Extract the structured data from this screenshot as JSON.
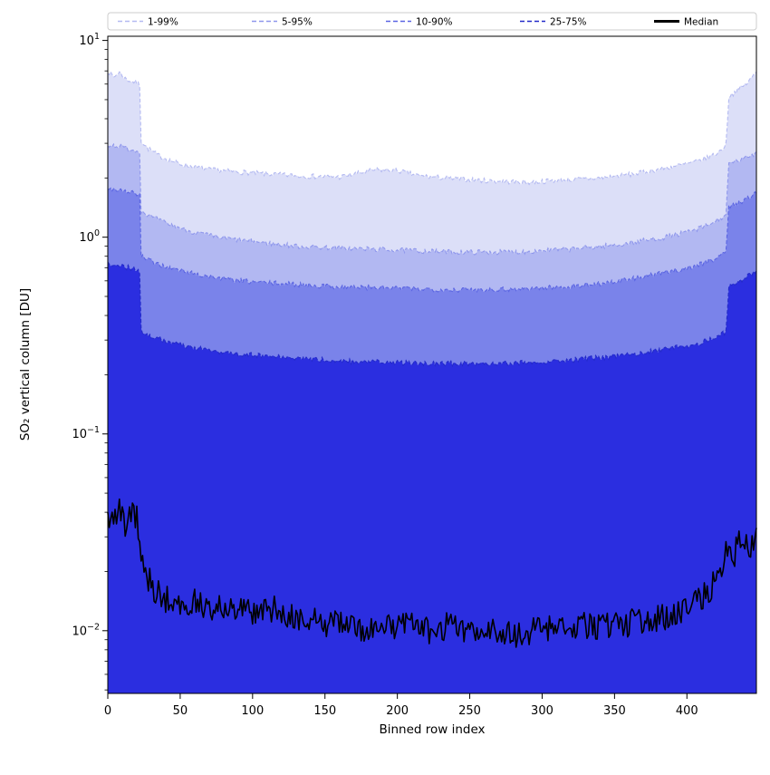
{
  "chart_data": {
    "type": "area",
    "title": "",
    "xlabel": "Binned row index",
    "ylabel": "SO₂ vertical column [DU]",
    "yscale": "log",
    "grid": false,
    "legend_position": "top",
    "background": "#ffffff",
    "xlim": [
      0,
      448
    ],
    "ylim": [
      0.0048,
      10.5
    ],
    "xticks": [
      0,
      50,
      100,
      150,
      200,
      250,
      300,
      350,
      400
    ],
    "yticks": [
      {
        "value": 0.01,
        "base": "10",
        "exponent": "−2"
      },
      {
        "value": 0.1,
        "base": "10",
        "exponent": "−1"
      },
      {
        "value": 1,
        "base": "10",
        "exponent": "0"
      },
      {
        "value": 10,
        "base": "10",
        "exponent": "1"
      }
    ],
    "noise": {
      "seed": 7,
      "band_amp": 0.013,
      "median_amp": 0.07
    },
    "bands": [
      {
        "name": "1-99%",
        "fill": "#dcdff8",
        "edge": "#b4baf1",
        "keypoints": [
          [
            0,
            7.0
          ],
          [
            4,
            6.5
          ],
          [
            8,
            6.9
          ],
          [
            12,
            6.4
          ],
          [
            16,
            6.2
          ],
          [
            20,
            6.1
          ],
          [
            22,
            5.9
          ],
          [
            23,
            3.1
          ],
          [
            27,
            2.85
          ],
          [
            35,
            2.6
          ],
          [
            50,
            2.35
          ],
          [
            70,
            2.2
          ],
          [
            100,
            2.12
          ],
          [
            130,
            2.05
          ],
          [
            160,
            2.02
          ],
          [
            185,
            2.2
          ],
          [
            200,
            2.18
          ],
          [
            215,
            2.05
          ],
          [
            240,
            1.98
          ],
          [
            265,
            1.93
          ],
          [
            290,
            1.9
          ],
          [
            315,
            1.95
          ],
          [
            340,
            2.0
          ],
          [
            365,
            2.1
          ],
          [
            390,
            2.28
          ],
          [
            405,
            2.4
          ],
          [
            415,
            2.55
          ],
          [
            422,
            2.7
          ],
          [
            427,
            2.95
          ],
          [
            429,
            5.2
          ],
          [
            434,
            5.5
          ],
          [
            438,
            5.8
          ],
          [
            442,
            6.1
          ],
          [
            448,
            6.9
          ]
        ]
      },
      {
        "name": "5-95%",
        "fill": "#b2b8f2",
        "edge": "#8f97ec",
        "keypoints": [
          [
            0,
            2.95
          ],
          [
            8,
            2.9
          ],
          [
            16,
            2.8
          ],
          [
            22,
            2.72
          ],
          [
            23,
            1.36
          ],
          [
            30,
            1.27
          ],
          [
            40,
            1.18
          ],
          [
            55,
            1.08
          ],
          [
            75,
            1.0
          ],
          [
            100,
            0.95
          ],
          [
            130,
            0.9
          ],
          [
            160,
            0.88
          ],
          [
            200,
            0.86
          ],
          [
            240,
            0.84
          ],
          [
            280,
            0.84
          ],
          [
            320,
            0.87
          ],
          [
            355,
            0.92
          ],
          [
            385,
            1.0
          ],
          [
            405,
            1.08
          ],
          [
            418,
            1.18
          ],
          [
            427,
            1.3
          ],
          [
            429,
            2.35
          ],
          [
            436,
            2.45
          ],
          [
            442,
            2.55
          ],
          [
            448,
            2.7
          ]
        ]
      },
      {
        "name": "10-90%",
        "fill": "#7a83ea",
        "edge": "#5a64e2",
        "keypoints": [
          [
            0,
            1.78
          ],
          [
            10,
            1.73
          ],
          [
            18,
            1.68
          ],
          [
            22,
            1.63
          ],
          [
            23,
            0.8
          ],
          [
            30,
            0.75
          ],
          [
            45,
            0.69
          ],
          [
            65,
            0.64
          ],
          [
            90,
            0.6
          ],
          [
            120,
            0.58
          ],
          [
            160,
            0.56
          ],
          [
            200,
            0.55
          ],
          [
            240,
            0.54
          ],
          [
            280,
            0.545
          ],
          [
            320,
            0.56
          ],
          [
            355,
            0.6
          ],
          [
            385,
            0.66
          ],
          [
            405,
            0.71
          ],
          [
            418,
            0.77
          ],
          [
            427,
            0.85
          ],
          [
            429,
            1.42
          ],
          [
            436,
            1.5
          ],
          [
            442,
            1.58
          ],
          [
            448,
            1.68
          ]
        ]
      },
      {
        "name": "25-75%",
        "fill": "#2b2ee0",
        "edge": "#232ac8",
        "keypoints": [
          [
            0,
            0.73
          ],
          [
            10,
            0.71
          ],
          [
            18,
            0.69
          ],
          [
            22,
            0.67
          ],
          [
            23,
            0.335
          ],
          [
            30,
            0.315
          ],
          [
            45,
            0.29
          ],
          [
            65,
            0.27
          ],
          [
            90,
            0.255
          ],
          [
            120,
            0.245
          ],
          [
            160,
            0.235
          ],
          [
            200,
            0.23
          ],
          [
            240,
            0.228
          ],
          [
            280,
            0.23
          ],
          [
            320,
            0.237
          ],
          [
            355,
            0.25
          ],
          [
            385,
            0.27
          ],
          [
            405,
            0.285
          ],
          [
            418,
            0.305
          ],
          [
            427,
            0.33
          ],
          [
            429,
            0.57
          ],
          [
            436,
            0.6
          ],
          [
            442,
            0.63
          ],
          [
            448,
            0.67
          ]
        ]
      }
    ],
    "median": {
      "name": "Median",
      "color": "#000000",
      "keypoints": [
        [
          0,
          0.04
        ],
        [
          4,
          0.036
        ],
        [
          8,
          0.043
        ],
        [
          12,
          0.034
        ],
        [
          16,
          0.04
        ],
        [
          20,
          0.037
        ],
        [
          23,
          0.026
        ],
        [
          27,
          0.019
        ],
        [
          32,
          0.016
        ],
        [
          40,
          0.0145
        ],
        [
          50,
          0.013
        ],
        [
          60,
          0.0145
        ],
        [
          72,
          0.013
        ],
        [
          85,
          0.0135
        ],
        [
          100,
          0.0122
        ],
        [
          115,
          0.0128
        ],
        [
          130,
          0.0115
        ],
        [
          145,
          0.011
        ],
        [
          160,
          0.0108
        ],
        [
          175,
          0.0102
        ],
        [
          190,
          0.0105
        ],
        [
          205,
          0.0108
        ],
        [
          220,
          0.01
        ],
        [
          235,
          0.0106
        ],
        [
          250,
          0.0098
        ],
        [
          265,
          0.0103
        ],
        [
          280,
          0.0094
        ],
        [
          295,
          0.01
        ],
        [
          310,
          0.0104
        ],
        [
          325,
          0.0107
        ],
        [
          340,
          0.0103
        ],
        [
          355,
          0.0108
        ],
        [
          370,
          0.0112
        ],
        [
          385,
          0.0118
        ],
        [
          400,
          0.013
        ],
        [
          408,
          0.0142
        ],
        [
          416,
          0.0165
        ],
        [
          424,
          0.0205
        ],
        [
          428,
          0.026
        ],
        [
          432,
          0.0235
        ],
        [
          436,
          0.028
        ],
        [
          440,
          0.03
        ],
        [
          444,
          0.0265
        ],
        [
          448,
          0.033
        ]
      ]
    },
    "legend": [
      {
        "label": "1-99%",
        "color": "#b4baf1",
        "style": "dashed"
      },
      {
        "label": "5-95%",
        "color": "#8f97ec",
        "style": "dashed"
      },
      {
        "label": "10-90%",
        "color": "#5a64e2",
        "style": "dashed"
      },
      {
        "label": "25-75%",
        "color": "#232ac8",
        "style": "dashed"
      },
      {
        "label": "Median",
        "color": "#000000",
        "style": "solid"
      }
    ]
  }
}
